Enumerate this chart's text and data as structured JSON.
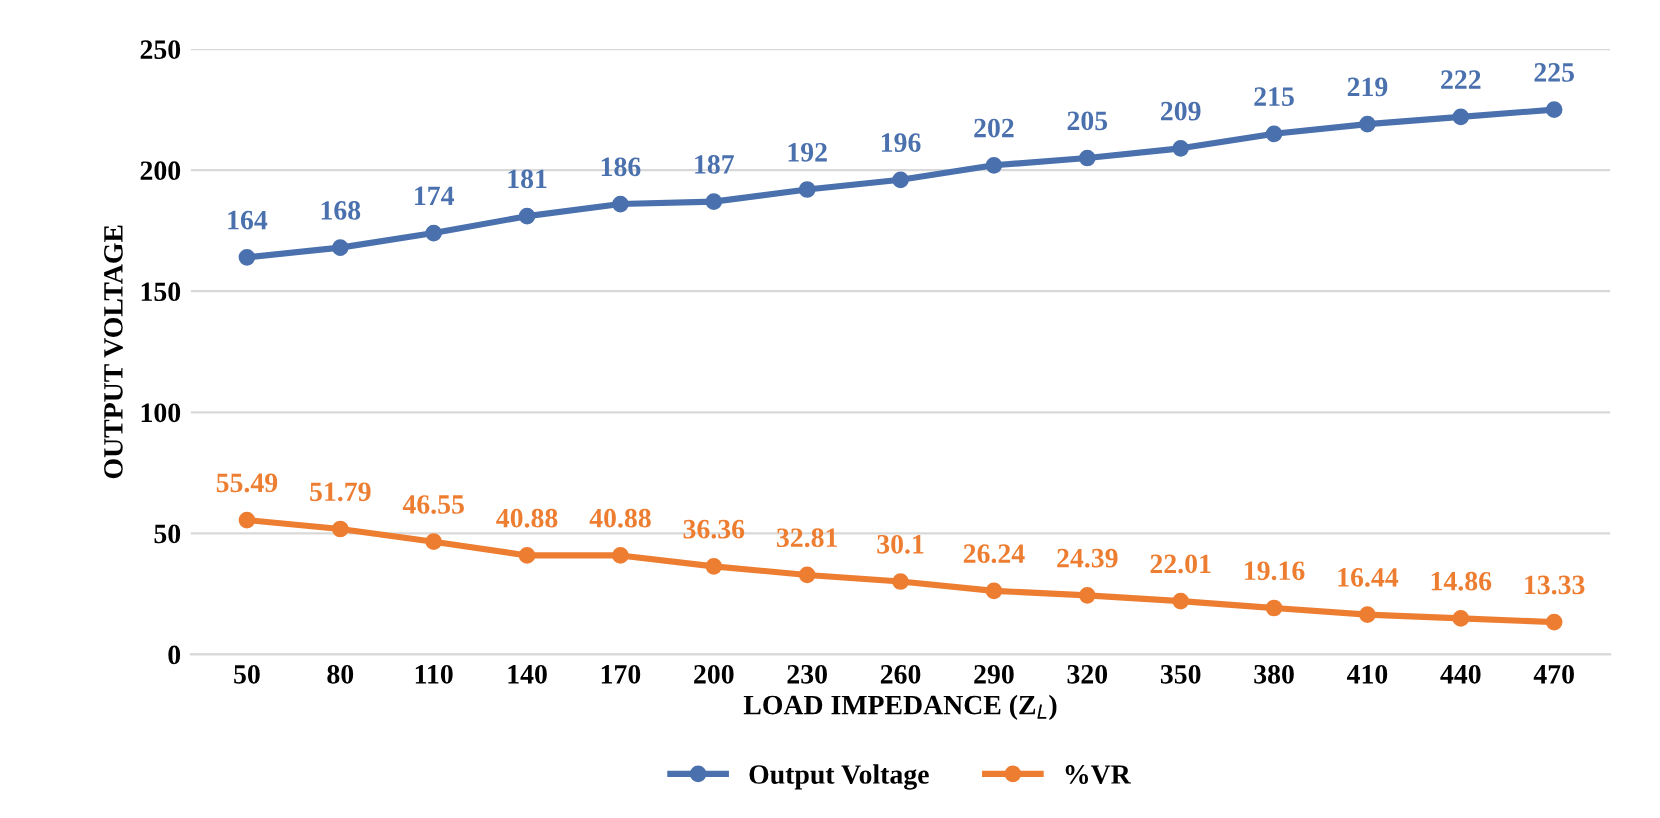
{
  "chart_data": {
    "type": "line",
    "xlabel": "LOAD IMPEDANCE (Z$_{L}$)",
    "ylabel": "OUTPUT VOLTAGE",
    "categories": [
      "50",
      "80",
      "110",
      "140",
      "170",
      "200",
      "230",
      "260",
      "290",
      "320",
      "350",
      "380",
      "410",
      "440",
      "470"
    ],
    "series": [
      {
        "name": "Output Voltage",
        "color": "#4a71ad",
        "values": [
          164,
          168,
          174,
          181,
          186,
          187,
          192,
          196,
          202,
          205,
          209,
          215,
          219,
          222,
          225
        ]
      },
      {
        "name": "%VR",
        "color": "#ed7d31",
        "values": [
          55.49,
          51.79,
          46.55,
          40.88,
          40.88,
          36.36,
          32.81,
          30.1,
          26.24,
          24.39,
          22.01,
          19.16,
          16.44,
          14.86,
          13.33
        ]
      }
    ],
    "ylim": [
      0,
      250
    ],
    "yticks": [
      0,
      50,
      100,
      150,
      200,
      250
    ],
    "grid": "y",
    "legend": "bottom",
    "marker": "circle",
    "line_style": "solid",
    "data_labels": true
  }
}
